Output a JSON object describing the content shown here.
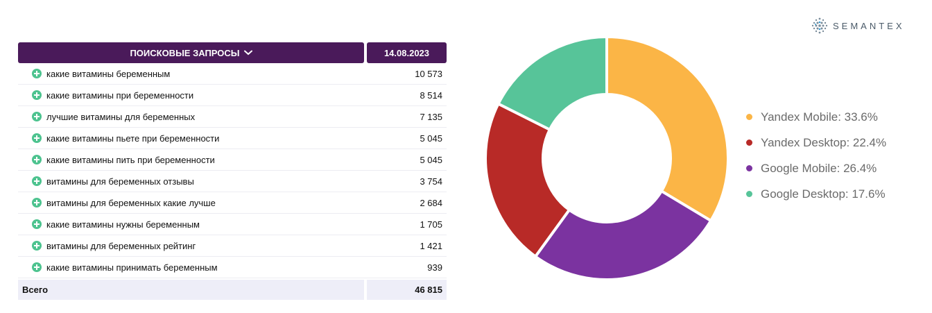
{
  "brand": {
    "name": "SEMANTEX"
  },
  "table": {
    "header_query": "ПОИСКОВЫЕ ЗАПРОСЫ",
    "header_date": "14.08.2023",
    "rows": [
      {
        "query": "какие витамины беременным",
        "value": "10 573"
      },
      {
        "query": "какие витамины при беременности",
        "value": "8 514"
      },
      {
        "query": "лучшие витамины для беременных",
        "value": "7 135"
      },
      {
        "query": "какие витамины пьете при беременности",
        "value": "5 045"
      },
      {
        "query": "какие витамины пить при беременности",
        "value": "5 045"
      },
      {
        "query": "витамины для беременных отзывы",
        "value": "3 754"
      },
      {
        "query": "витамины для беременных какие лучше",
        "value": "2 684"
      },
      {
        "query": "какие витамины нужны беременным",
        "value": "1 705"
      },
      {
        "query": "витамины для беременных рейтинг",
        "value": "1 421"
      },
      {
        "query": "какие витамины принимать беременным",
        "value": "939"
      }
    ],
    "total_label": "Всего",
    "total_value": "46 815"
  },
  "chart_data": {
    "type": "pie",
    "donut": true,
    "legend_position": "right",
    "title": "",
    "series": [
      {
        "name": "Yandex Mobile",
        "value": 33.6,
        "label": "Yandex Mobile: 33.6%",
        "color": "#fbb546"
      },
      {
        "name": "Google Mobile",
        "value": 26.4,
        "label": "Google Mobile: 26.4%",
        "color": "#7b33a0"
      },
      {
        "name": "Yandex Desktop",
        "value": 22.4,
        "label": "Yandex Desktop: 22.4%",
        "color": "#b82a27"
      },
      {
        "name": "Google Desktop",
        "value": 17.6,
        "label": "Google Desktop: 17.6%",
        "color": "#57c499"
      }
    ],
    "legend_order": [
      "Yandex Mobile",
      "Yandex Desktop",
      "Google Mobile",
      "Google Desktop"
    ]
  }
}
